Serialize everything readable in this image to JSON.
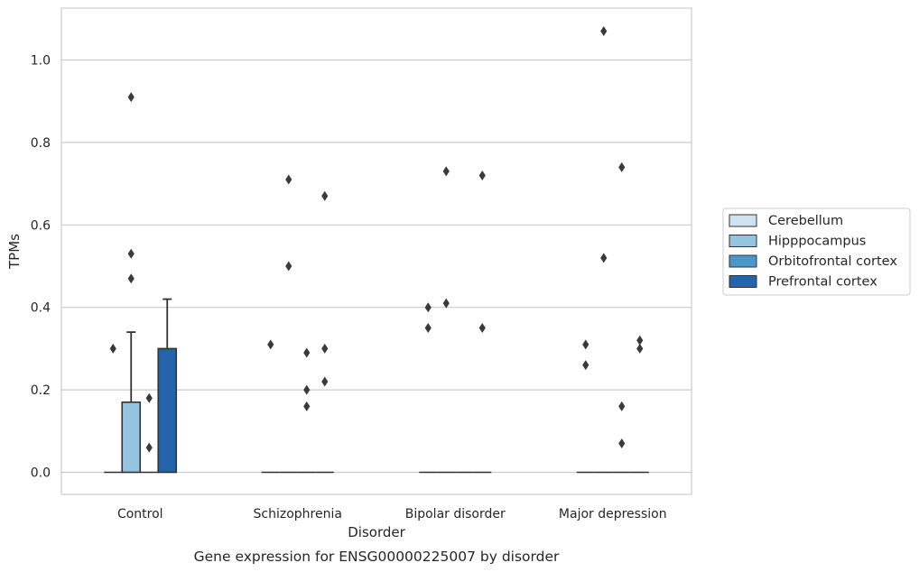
{
  "chart_data": {
    "type": "bar",
    "caption": "Gene expression for ENSG00000225007 by disorder",
    "xlabel": "Disorder",
    "ylabel": "TPMs",
    "ylim": [
      -0.052,
      1.13
    ],
    "yticks": [
      0.0,
      0.2,
      0.4,
      0.6,
      0.8,
      1.0
    ],
    "ytick_labels": [
      "0.0",
      "0.2",
      "0.4",
      "0.6",
      "0.8",
      "1.0"
    ],
    "grid": "horizontal",
    "legend_position": "right",
    "categories": [
      "Control",
      "Schizophrenia",
      "Bipolar disorder",
      "Major depression"
    ],
    "series": [
      {
        "name": "Cerebellum",
        "color": "#d0e1f2",
        "values": [
          0.0,
          0.0,
          0.0,
          0.0
        ],
        "error_upper": [
          null,
          null,
          null,
          null
        ],
        "outliers": [
          [
            0.3
          ],
          [
            0.31
          ],
          [
            0.4,
            0.35
          ],
          [
            0.31,
            0.26
          ]
        ]
      },
      {
        "name": "Hipppocampus",
        "color": "#94c4df",
        "values": [
          0.17,
          0.0,
          0.0,
          0.0
        ],
        "error_upper": [
          0.34,
          null,
          null,
          null
        ],
        "outliers": [
          [
            0.91,
            0.53,
            0.47
          ],
          [
            0.71,
            0.5
          ],
          [
            0.73,
            0.41
          ],
          [
            1.07,
            0.52
          ]
        ]
      },
      {
        "name": "Orbitofrontal cortex",
        "color": "#4a98c9",
        "values": [
          0.0,
          0.0,
          0.0,
          0.0
        ],
        "error_upper": [
          null,
          null,
          null,
          null
        ],
        "outliers": [
          [
            0.18,
            0.06
          ],
          [
            0.29,
            0.2,
            0.16
          ],
          [],
          [
            0.74,
            0.16,
            0.07
          ]
        ]
      },
      {
        "name": "Prefrontal cortex",
        "color": "#2464ab",
        "values": [
          0.3,
          0.0,
          0.0,
          0.0
        ],
        "error_upper": [
          0.42,
          null,
          null,
          null
        ],
        "outliers": [
          [],
          [
            0.67,
            0.3,
            0.22
          ],
          [
            0.72,
            0.35
          ],
          [
            0.32,
            0.3
          ]
        ]
      }
    ]
  }
}
